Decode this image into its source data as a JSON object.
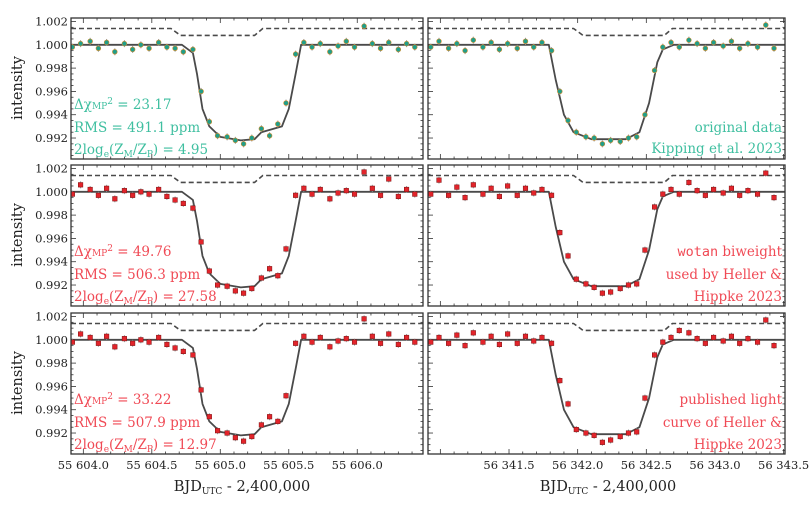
{
  "chart_data": {
    "type": "scatter",
    "ylabel": "intensity",
    "xlabel": {
      "main": "BJD",
      "sub": "UTC",
      "rest": " - 2,400,000"
    },
    "ylim": [
      0.9902,
      1.0023
    ],
    "yticks": [
      "1.002",
      "1.000",
      "0.998",
      "0.996",
      "0.994",
      "0.992"
    ],
    "ytick_values": [
      1.002,
      1.0,
      0.998,
      0.996,
      0.994,
      0.992
    ],
    "columns": [
      {
        "xlim": [
          55603.91,
          55606.48
        ],
        "xticks": [
          "55 604.0",
          "55 604.5",
          "55 605.0",
          "55 605.5",
          "55 606.0"
        ],
        "xtick_values": [
          55604.0,
          55604.5,
          55605.0,
          55605.5,
          55606.0
        ],
        "x": [
          55603.92,
          55603.98,
          55604.05,
          55604.11,
          55604.17,
          55604.23,
          55604.3,
          55604.36,
          55604.42,
          55604.48,
          55604.55,
          55604.61,
          55604.67,
          55604.73,
          55604.8,
          55604.86,
          55604.92,
          55604.98,
          55605.05,
          55605.11,
          55605.17,
          55605.23,
          55605.3,
          55605.36,
          55605.42,
          55605.48,
          55605.55,
          55605.61,
          55605.67,
          55605.73,
          55605.8,
          55605.86,
          55605.92,
          55605.98,
          55606.05,
          55606.11,
          55606.17,
          55606.23,
          55606.3,
          55606.36,
          55606.42
        ],
        "model_x": [
          55603.91,
          55604.72,
          55604.8,
          55604.83,
          55604.87,
          55604.92,
          55605.0,
          55605.15,
          55605.25,
          55605.3,
          55605.45,
          55605.5,
          55605.55,
          55605.59,
          55606.48
        ],
        "model_y": [
          1.0,
          1.0,
          0.9993,
          0.9975,
          0.9945,
          0.993,
          0.9921,
          0.9918,
          0.9919,
          0.9925,
          0.993,
          0.9945,
          0.9975,
          1.0,
          1.0
        ],
        "planet_x": [
          55603.91,
          55604.64,
          55604.71,
          55605.25,
          55605.31,
          55606.48
        ],
        "planet_y": [
          1.0014,
          1.0014,
          1.0008,
          1.0008,
          1.0014,
          1.0014
        ]
      },
      {
        "xlim": [
          56340.91,
          56343.51
        ],
        "xticks": [
          "56 341.5",
          "56 342.0",
          "56 342.5",
          "56 343.0",
          "56 343.5"
        ],
        "xtick_values": [
          56341.5,
          56342.0,
          56342.5,
          56343.0,
          56343.5
        ],
        "x": [
          56340.93,
          56340.99,
          56341.06,
          56341.12,
          56341.18,
          56341.24,
          56341.31,
          56341.37,
          56341.43,
          56341.49,
          56341.56,
          56341.62,
          56341.68,
          56341.74,
          56341.81,
          56341.87,
          56341.93,
          56341.99,
          56342.06,
          56342.12,
          56342.18,
          56342.24,
          56342.31,
          56342.37,
          56342.43,
          56342.49,
          56342.56,
          56342.62,
          56342.68,
          56342.74,
          56342.81,
          56342.87,
          56342.93,
          56342.99,
          56343.06,
          56343.12,
          56343.18,
          56343.24,
          56343.31,
          56343.37,
          56343.43
        ],
        "model_x": [
          56340.91,
          56341.79,
          56341.84,
          56341.9,
          56341.97,
          56342.1,
          56342.35,
          56342.45,
          56342.52,
          56342.58,
          56342.62,
          56342.7,
          56343.51
        ],
        "model_y": [
          1.0,
          1.0,
          0.997,
          0.994,
          0.9925,
          0.9919,
          0.9919,
          0.9925,
          0.995,
          0.9985,
          0.9996,
          1.0,
          1.0
        ],
        "planet_x": [
          56340.91,
          56341.97,
          56342.04,
          56342.63,
          56342.69,
          56343.51
        ],
        "planet_y": [
          1.0014,
          1.0014,
          1.0008,
          1.0008,
          1.0014,
          1.0014
        ]
      }
    ],
    "rows": [
      {
        "marker_color": "#1f9e8a",
        "text_color": "#3fbfa0",
        "left_y": [
          0.9998,
          1.0001,
          1.0003,
          0.9997,
          1.0002,
          0.9994,
          1.0001,
          0.9996,
          1.0,
          0.9997,
          1.0002,
          0.9998,
          0.9997,
          0.9994,
          0.9996,
          0.996,
          0.9934,
          0.9922,
          0.9921,
          0.9918,
          0.9915,
          0.992,
          0.9928,
          0.9922,
          0.9932,
          0.995,
          0.9992,
          1.0002,
          0.9998,
          1.0001,
          0.9994,
          0.9999,
          1.0003,
          0.9998,
          1.0016,
          1.0001,
          0.9997,
          1.0002,
          0.9996,
          1.0001,
          0.9998
        ],
        "right_y": [
          0.9998,
          1.0003,
          0.9997,
          1.0001,
          0.9995,
          1.0004,
          0.9998,
          1.0002,
          0.9996,
          1.0001,
          0.9997,
          1.0003,
          0.9998,
          1.0002,
          0.9995,
          0.996,
          0.9935,
          0.9925,
          0.9921,
          0.992,
          0.9915,
          0.9918,
          0.9917,
          0.992,
          0.9921,
          0.994,
          0.9978,
          0.9998,
          1.0002,
          0.9998,
          1.0004,
          1.0001,
          0.9997,
          1.0002,
          0.9999,
          1.0003,
          0.9997,
          1.0001,
          0.9998,
          1.0017,
          0.9997
        ]
      },
      {
        "marker_color": "#e3242b",
        "text_color": "#f04a55",
        "left_y": [
          0.9998,
          1.0006,
          1.0002,
          0.9997,
          1.0003,
          0.9994,
          1.0001,
          0.9997,
          1.0,
          0.9998,
          1.0002,
          0.9996,
          0.9993,
          0.999,
          0.9986,
          0.9957,
          0.9932,
          0.992,
          0.9919,
          0.9915,
          0.9913,
          0.9917,
          0.9926,
          0.9934,
          0.9928,
          0.9951,
          0.9997,
          1.0003,
          0.9998,
          1.0002,
          0.9994,
          0.9999,
          1.0001,
          0.9998,
          1.0017,
          1.0003,
          0.9997,
          1.0011,
          0.9996,
          1.0002,
          0.9998
        ],
        "right_y": [
          0.9998,
          1.001,
          0.9997,
          1.0004,
          0.9995,
          1.0006,
          0.9998,
          1.0003,
          0.9996,
          1.0005,
          0.9997,
          1.0003,
          0.9999,
          1.0002,
          0.9997,
          0.9965,
          0.9945,
          0.9925,
          0.9921,
          0.9918,
          0.9913,
          0.9914,
          0.9917,
          0.992,
          0.9921,
          0.995,
          0.9987,
          0.9998,
          1.0002,
          0.9998,
          1.0008,
          1.0001,
          0.9997,
          1.0002,
          0.9999,
          1.0003,
          0.9997,
          1.0001,
          0.9998,
          1.0016,
          0.9995
        ]
      },
      {
        "marker_color": "#e3242b",
        "text_color": "#f04a55",
        "left_y": [
          0.9998,
          1.0005,
          1.0002,
          0.9997,
          1.0003,
          0.9994,
          1.0001,
          0.9997,
          1.0,
          0.9998,
          1.0002,
          0.9996,
          0.9993,
          0.999,
          0.9987,
          0.9957,
          0.9934,
          0.9922,
          0.992,
          0.9916,
          0.9913,
          0.9917,
          0.9927,
          0.9934,
          0.993,
          0.9952,
          0.9997,
          1.0003,
          0.9998,
          1.0002,
          0.9994,
          0.9999,
          1.0001,
          0.9998,
          1.0018,
          1.0003,
          0.9997,
          1.0005,
          0.9996,
          1.0002,
          0.9998
        ],
        "right_y": [
          0.9998,
          1.0002,
          0.9997,
          1.0004,
          0.9995,
          1.0006,
          0.9998,
          1.0003,
          0.9996,
          1.0005,
          0.9997,
          1.0003,
          0.9999,
          1.0002,
          0.9997,
          0.9965,
          0.9945,
          0.9923,
          0.992,
          0.9918,
          0.9912,
          0.9914,
          0.9917,
          0.992,
          0.9921,
          0.995,
          0.9987,
          0.9998,
          1.0002,
          1.0008,
          1.0006,
          1.0001,
          0.9997,
          1.0002,
          0.9999,
          1.0003,
          0.9997,
          1.0001,
          0.9998,
          1.0017,
          0.9995
        ]
      }
    ],
    "annotations": [
      {
        "dchi": "Δχ",
        "dchi_sub": "MP",
        "dchi_sup": "2",
        "dchi_val": " = 23.17",
        "rms": "RMS = 491.1 ppm",
        "logz": "2log",
        "logz_e": "e",
        "logz_mid": "(Z",
        "logz_m": "M",
        "logz_slash": "/Z",
        "logz_p": "P",
        "logz_val": ") = 4.95",
        "label_lines": [
          "original data",
          "Kipping et al. 2023"
        ]
      },
      {
        "dchi": "Δχ",
        "dchi_sub": "MP",
        "dchi_sup": "2",
        "dchi_val": " = 49.76",
        "rms": "RMS = 506.3 ppm",
        "logz": "2log",
        "logz_e": "e",
        "logz_mid": "(Z",
        "logz_m": "M",
        "logz_slash": "/Z",
        "logz_p": "P",
        "logz_val": ") = 27.58",
        "label_code": "wotan",
        "label_lines": [
          " biweight",
          "used by Heller &",
          "Hippke 2023"
        ]
      },
      {
        "dchi": "Δχ",
        "dchi_sub": "MP",
        "dchi_sup": "2",
        "dchi_val": " = 33.22",
        "rms": "RMS = 507.9 ppm",
        "logz": "2log",
        "logz_e": "e",
        "logz_mid": "(Z",
        "logz_m": "M",
        "logz_slash": "/Z",
        "logz_p": "P",
        "logz_val": ") = 12.97",
        "label_lines": [
          "published light",
          "curve of Heller &",
          "Hippke 2023"
        ]
      }
    ],
    "errorbar": 0.0003,
    "colors": {
      "model": "#4a4a4a",
      "planet_dashed": "#4a4a4a",
      "errorbar": "#9a9a9a",
      "frame": "#333333"
    }
  }
}
